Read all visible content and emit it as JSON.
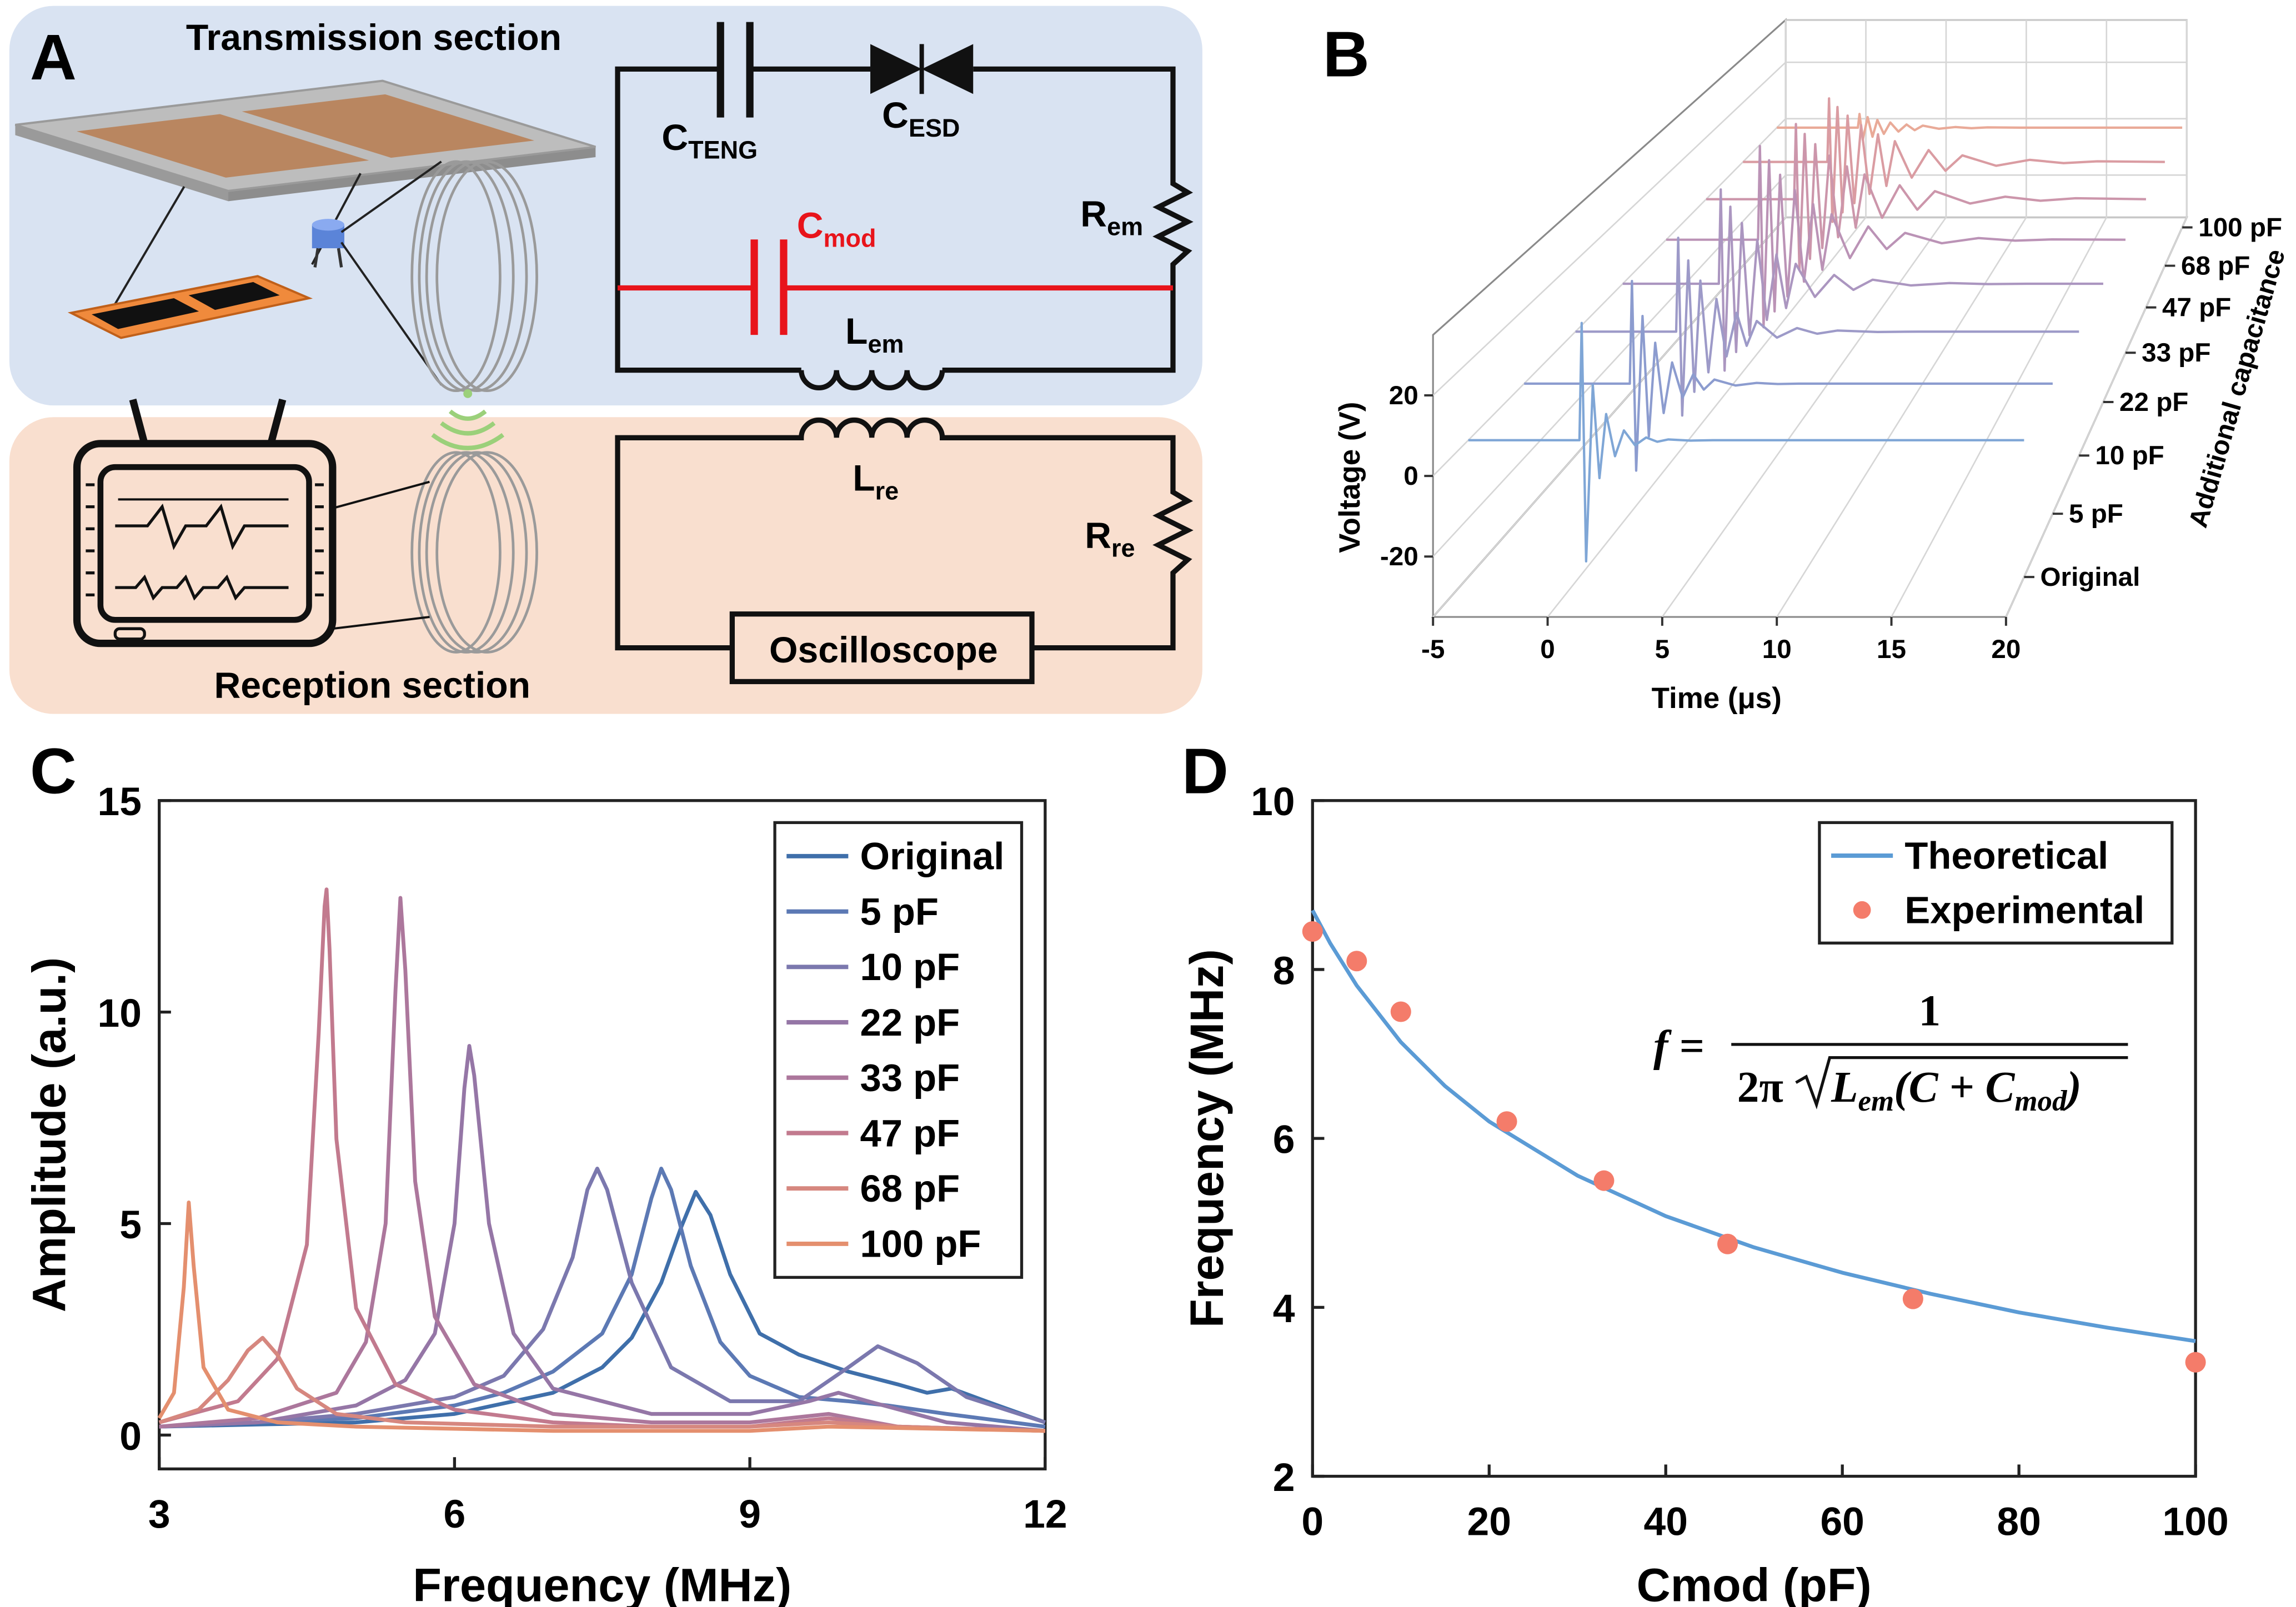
{
  "panel_labels": [
    "A",
    "B",
    "C",
    "D"
  ],
  "diagram": {
    "transmission_title": "Transmission section",
    "reception_title": "Reception section",
    "oscilloscope": "Oscilloscope",
    "circuit_labels": [
      {
        "symbol": "C",
        "subscript": "TENG"
      },
      {
        "symbol": "C",
        "subscript": "ESD"
      },
      {
        "symbol": "R",
        "subscript": "em"
      },
      {
        "symbol": "C",
        "subscript": "mod"
      },
      {
        "symbol": "L",
        "subscript": "em"
      },
      {
        "symbol": "L",
        "subscript": "re"
      },
      {
        "symbol": "R",
        "subscript": "re"
      }
    ]
  },
  "chart_data": [
    {
      "type": "waterfall3d",
      "x_label": "Time (μs)",
      "y_label": "Voltage (V)",
      "z_label": "Additional capacitance",
      "x": [
        -5,
        0,
        0.1,
        0.3,
        0.6,
        0.9,
        1.2,
        1.6,
        2,
        2.5,
        3,
        3.5,
        4,
        5,
        6,
        7,
        8,
        10,
        12,
        14,
        16,
        20
      ],
      "xlim": [
        -5,
        20
      ],
      "xticks": [
        -5,
        0,
        5,
        10,
        15,
        20
      ],
      "ylim": [
        -35,
        35
      ],
      "yticks": [
        -20,
        0,
        20
      ],
      "grid": true,
      "series": [
        {
          "name": "Original",
          "color": "#7fa6d6",
          "values": [
            0,
            0,
            30,
            -31,
            14.2,
            -9.7,
            6.7,
            -4.1,
            2.5,
            -1.3,
            0.7,
            -0.4,
            0.2,
            -0.1,
            0,
            0,
            0,
            0,
            0,
            0,
            0,
            0
          ]
        },
        {
          "name": "5 pF",
          "color": "#8c9ccf",
          "values": [
            0,
            0,
            27.6,
            -23.4,
            18.2,
            -14.2,
            11,
            -7.9,
            5.7,
            -3.7,
            2.5,
            -1.6,
            1.1,
            -0.5,
            0.2,
            -0.1,
            0,
            0,
            0,
            0,
            0,
            0
          ]
        },
        {
          "name": "10 pF",
          "color": "#9d9ac8",
          "values": [
            0,
            0,
            26.5,
            -23.7,
            20.1,
            -17,
            14.4,
            -11.5,
            9.2,
            -7,
            5.3,
            -4,
            3,
            -1.7,
            1,
            -0.6,
            0.3,
            -0.1,
            0,
            0,
            0,
            0
          ]
        },
        {
          "name": "22 pF",
          "color": "#ab96c0",
          "values": [
            0,
            0,
            27.9,
            -25.7,
            22.8,
            -20.2,
            18,
            -15.3,
            13,
            -10.7,
            8.7,
            -7.2,
            5.9,
            -3.9,
            2.6,
            -1.8,
            1.2,
            -0.5,
            0.2,
            -0.1,
            0,
            0
          ]
        },
        {
          "name": "33 pF",
          "color": "#bb93b6",
          "values": [
            0,
            0,
            29,
            -27.1,
            24.6,
            -22.2,
            20.1,
            -17.6,
            15.4,
            -13,
            11,
            -9.3,
            7.9,
            -5.7,
            4.1,
            -2.9,
            2.1,
            -1.1,
            0.5,
            -0.3,
            0.1,
            0
          ]
        },
        {
          "name": "47 pF",
          "color": "#cc96ab",
          "values": [
            0,
            0,
            24.3,
            -23,
            21.1,
            -19.3,
            17.8,
            -15.8,
            14.1,
            -12.3,
            10.6,
            -9.2,
            8,
            -6,
            4.5,
            -3.4,
            2.6,
            -1.4,
            0.8,
            -0.5,
            0.3,
            0
          ]
        },
        {
          "name": "68 pF",
          "color": "#da9ca2",
          "values": [
            0,
            0,
            21.4,
            -20.2,
            18.5,
            -17,
            15.6,
            -13.9,
            12.4,
            -10.8,
            9.3,
            -8.1,
            7,
            -5.3,
            4,
            -3,
            2.2,
            -1.3,
            0.7,
            -0.4,
            0.2,
            0
          ]
        },
        {
          "name": "100 pF",
          "color": "#e9aa98",
          "values": [
            0,
            0,
            4.8,
            -4.3,
            3.7,
            -3.2,
            2.7,
            -2.2,
            1.8,
            -1.4,
            1.1,
            -0.9,
            0.7,
            -0.4,
            0.2,
            -0.2,
            0.1,
            0,
            0,
            0,
            0,
            0
          ]
        }
      ]
    },
    {
      "type": "line",
      "x_label": "Frequency (MHz)",
      "y_label": "Amplitude (a.u.)",
      "xlim": [
        3,
        12
      ],
      "xticks": [
        3,
        6,
        9,
        12
      ],
      "ylim": [
        -0.8,
        15
      ],
      "yticks": [
        0,
        5,
        10,
        15
      ],
      "legend": "upper right",
      "series": [
        {
          "name": "Original",
          "color": "#3f6faa",
          "x": [
            3,
            4,
            5,
            6,
            7,
            7.5,
            7.8,
            8.1,
            8.3,
            8.45,
            8.6,
            8.8,
            9.1,
            9.5,
            10,
            10.5,
            10.8,
            11.05,
            11.4,
            12
          ],
          "values": [
            0.2,
            0.25,
            0.3,
            0.5,
            1.0,
            1.6,
            2.3,
            3.6,
            4.9,
            5.75,
            5.2,
            3.8,
            2.4,
            1.9,
            1.5,
            1.2,
            1.0,
            1.1,
            0.8,
            0.3
          ]
        },
        {
          "name": "5 pF",
          "color": "#5c79b4",
          "x": [
            3,
            4,
            5,
            6,
            6.5,
            7,
            7.5,
            7.8,
            8,
            8.1,
            8.2,
            8.4,
            8.7,
            9,
            9.5,
            10,
            10.4,
            11,
            12
          ],
          "values": [
            0.2,
            0.3,
            0.4,
            0.7,
            1.0,
            1.5,
            2.4,
            3.8,
            5.6,
            6.3,
            5.8,
            4.0,
            2.2,
            1.4,
            0.9,
            0.8,
            0.7,
            0.5,
            0.2
          ]
        },
        {
          "name": "10 pF",
          "color": "#7b78ae",
          "x": [
            3,
            4,
            5,
            6,
            6.5,
            6.9,
            7.2,
            7.35,
            7.45,
            7.55,
            7.8,
            8.2,
            8.8,
            9.5,
            10,
            10.3,
            10.7,
            11.2,
            12
          ],
          "values": [
            0.2,
            0.3,
            0.5,
            0.9,
            1.4,
            2.5,
            4.2,
            5.8,
            6.3,
            5.8,
            3.6,
            1.6,
            0.8,
            0.8,
            1.6,
            2.1,
            1.7,
            0.9,
            0.3
          ]
        },
        {
          "name": "22 pF",
          "color": "#9576a6",
          "x": [
            3,
            4,
            5,
            5.5,
            5.8,
            6,
            6.1,
            6.15,
            6.2,
            6.35,
            6.6,
            7,
            8,
            9,
            9.6,
            9.9,
            10.2,
            11,
            12
          ],
          "values": [
            0.2,
            0.3,
            0.7,
            1.3,
            2.4,
            5.0,
            8.2,
            9.2,
            8.5,
            5.0,
            2.4,
            1.1,
            0.5,
            0.5,
            0.8,
            1.0,
            0.8,
            0.3,
            0.1
          ]
        },
        {
          "name": "33 pF",
          "color": "#ac779c",
          "x": [
            3,
            4,
            4.8,
            5.1,
            5.3,
            5.4,
            5.45,
            5.5,
            5.6,
            5.8,
            6.2,
            7,
            8,
            9,
            9.8,
            10.5,
            12
          ],
          "values": [
            0.2,
            0.4,
            1.0,
            2.2,
            5.0,
            10.5,
            12.7,
            11.0,
            6.0,
            2.8,
            1.2,
            0.5,
            0.3,
            0.3,
            0.5,
            0.2,
            0.1
          ]
        },
        {
          "name": "47 pF",
          "color": "#c27a8e",
          "x": [
            3,
            3.8,
            4.2,
            4.5,
            4.62,
            4.68,
            4.7,
            4.73,
            4.8,
            5,
            5.4,
            6,
            7,
            8,
            9,
            9.8,
            10.5,
            12
          ],
          "values": [
            0.3,
            0.8,
            1.8,
            4.5,
            9.5,
            12.5,
            12.9,
            11.5,
            7.0,
            3.0,
            1.2,
            0.6,
            0.3,
            0.2,
            0.2,
            0.4,
            0.2,
            0.1
          ]
        },
        {
          "name": "68 pF",
          "color": "#d6877f",
          "x": [
            3,
            3.4,
            3.7,
            3.9,
            4.05,
            4.2,
            4.4,
            4.8,
            5.5,
            7,
            9,
            9.8,
            10.5,
            12
          ],
          "values": [
            0.3,
            0.6,
            1.3,
            2.0,
            2.3,
            1.9,
            1.1,
            0.5,
            0.3,
            0.2,
            0.2,
            0.3,
            0.2,
            0.1
          ]
        },
        {
          "name": "100 pF",
          "color": "#e48f6e",
          "x": [
            3,
            3.15,
            3.25,
            3.3,
            3.35,
            3.45,
            3.7,
            4.2,
            5,
            7,
            9,
            9.8,
            12
          ],
          "values": [
            0.4,
            1.0,
            3.5,
            5.5,
            4.0,
            1.6,
            0.6,
            0.3,
            0.2,
            0.1,
            0.1,
            0.2,
            0.1
          ]
        }
      ]
    },
    {
      "type": "line",
      "x_label": "Cmod (pF)",
      "y_label": "Frequency (MHz)",
      "xlim": [
        0,
        100
      ],
      "xticks": [
        0,
        20,
        40,
        60,
        80,
        100
      ],
      "ylim": [
        2,
        10
      ],
      "yticks": [
        2,
        4,
        6,
        8,
        10
      ],
      "legend": "upper right",
      "series": [
        {
          "name": "Theoretical",
          "type": "line",
          "color": "#5b9bd5",
          "x": [
            0,
            2,
            5,
            10,
            15,
            20,
            30,
            40,
            50,
            60,
            70,
            80,
            90,
            100
          ],
          "values": [
            8.7,
            8.31,
            7.81,
            7.14,
            6.62,
            6.2,
            5.56,
            5.08,
            4.71,
            4.41,
            4.16,
            3.94,
            3.76,
            3.6
          ]
        },
        {
          "name": "Experimental",
          "type": "scatter",
          "color": "#f47c6a",
          "x": [
            0,
            5,
            10,
            22,
            33,
            47,
            68,
            100
          ],
          "values": [
            8.45,
            8.1,
            7.5,
            6.2,
            5.5,
            4.75,
            4.1,
            3.35
          ]
        }
      ],
      "annotation": {
        "lhs": "f =",
        "numerator": "1",
        "factor": "2π",
        "radicand": [
          "L",
          {
            "sub": "em"
          },
          "(C + C",
          {
            "sub": "mod"
          },
          ")"
        ]
      }
    }
  ]
}
